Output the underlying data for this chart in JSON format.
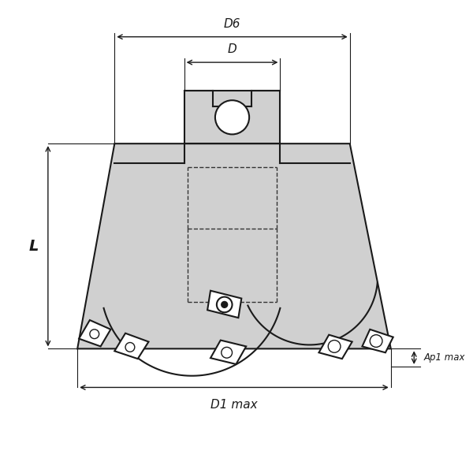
{
  "bg_color": "#ffffff",
  "line_color": "#1a1a1a",
  "fill_color": "#d0d0d0",
  "dashed_color": "#333333",
  "figsize": [
    6.0,
    6.0
  ],
  "dpi": 100,
  "dim_D6_label": "D6",
  "dim_D_label": "D",
  "dim_L_label": "L",
  "dim_D1_label": "D1 max",
  "dim_Ap1_label": "Ap1 max"
}
